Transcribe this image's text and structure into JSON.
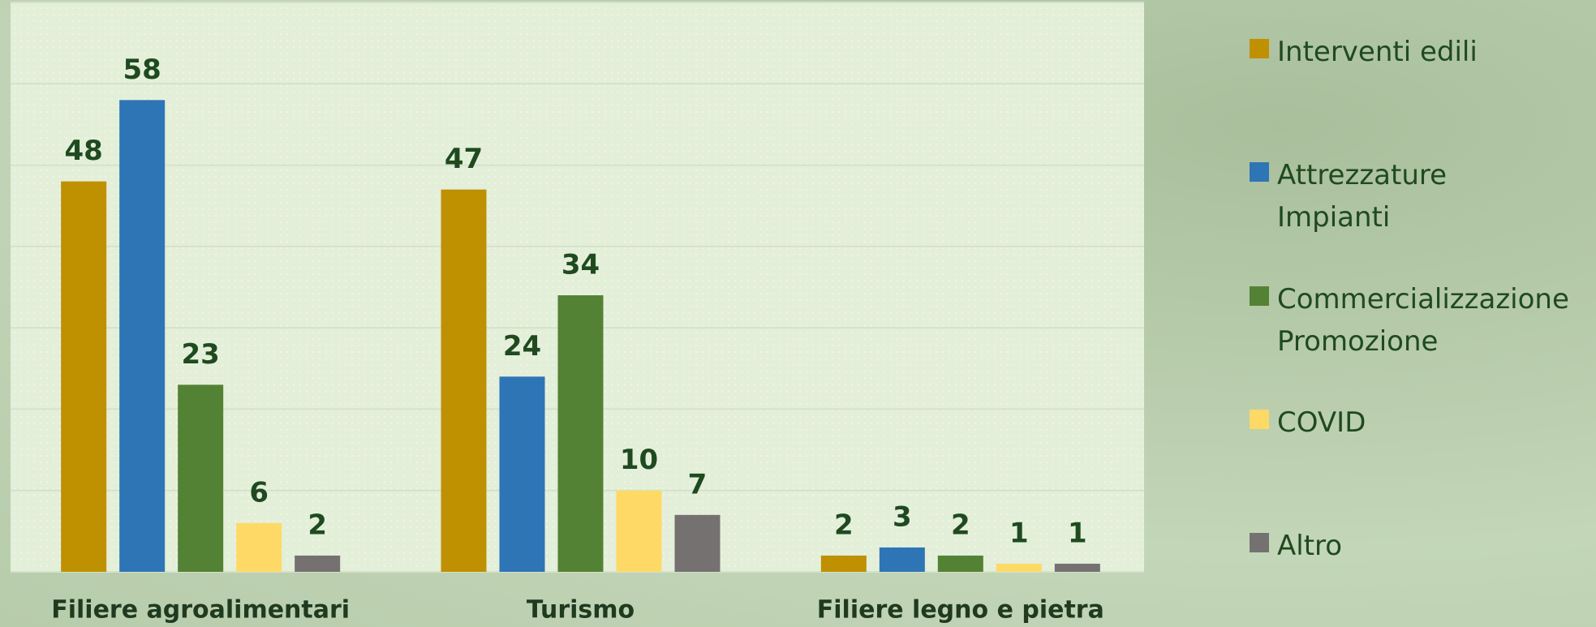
{
  "chart_data": {
    "type": "bar",
    "categories": [
      "Filiere agroalimentari",
      "Turismo",
      "Filiere legno e pietra"
    ],
    "series": [
      {
        "name": "Interventi edili",
        "color": "#bf9000",
        "values": [
          48,
          47,
          2
        ]
      },
      {
        "name": "Attrezzature Impianti",
        "color": "#2e75b6",
        "values": [
          58,
          24,
          3
        ]
      },
      {
        "name": "Commercializzazione Promozione",
        "color": "#548235",
        "values": [
          23,
          34,
          2
        ]
      },
      {
        "name": "COVID",
        "color": "#ffd966",
        "values": [
          6,
          10,
          1
        ]
      },
      {
        "name": "Altro",
        "color": "#767171",
        "values": [
          2,
          7,
          1
        ]
      }
    ],
    "ylim": [
      0,
      70
    ],
    "yticks": [
      0,
      10,
      20,
      30,
      40,
      50,
      60,
      70
    ],
    "grid": true,
    "legend": "right"
  }
}
